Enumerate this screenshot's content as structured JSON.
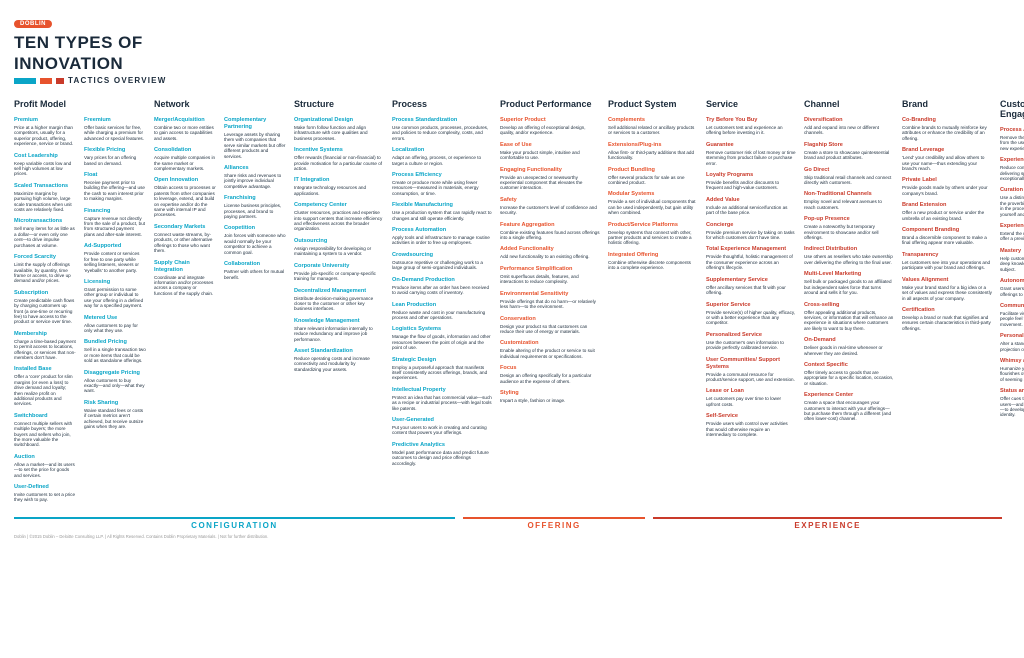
{
  "brand": "DOBLIN",
  "title_l1": "TEN TYPES OF",
  "title_l2": "INNOVATION",
  "subtitle": "TACTICS OVERVIEW",
  "groups": [
    {
      "key": "configuration",
      "label": "CONFIGURATION",
      "color": "blue",
      "span_cols": 4
    },
    {
      "key": "offering",
      "label": "OFFERING",
      "color": "orange",
      "span_cols": 2
    },
    {
      "key": "experience",
      "label": "EXPERIENCE",
      "color": "red",
      "span_cols": 4
    }
  ],
  "categories": [
    {
      "name": "Profit Model",
      "color": "blue",
      "double": true,
      "items": [
        {
          "t": "Premium",
          "d": "Price at a higher margin than competitors, usually for a superior product, offering, experience, service or brand."
        },
        {
          "t": "Cost Leadership",
          "d": "Keep variable costs low and sell high volumes at low prices."
        },
        {
          "t": "Scaled Transactions",
          "d": "Maximize margins by pursuing high volume, large scale transactions when unit costs are relatively fixed."
        },
        {
          "t": "Microtransactions",
          "d": "Sell many items for as little as a dollar—or even only one cent—to drive impulse purchases at volume."
        },
        {
          "t": "Forced Scarcity",
          "d": "Limit the supply of offerings available, by quantity, time frame or access, to drive up demand and/or prices."
        },
        {
          "t": "Subscription",
          "d": "Create predictable cash flows by charging customers up front (a one-time or recurring fee) to have access to the product or service over time."
        },
        {
          "t": "Membership",
          "d": "Charge a time-based payment to permit access to locations, offerings, or services that non-members don't have."
        },
        {
          "t": "Installed Base",
          "d": "Offer a 'core' product for slim margins (or even a loss) to drive demand and loyalty; then realize profit on additional products and services."
        },
        {
          "t": "Switchboard",
          "d": "Connect multiple sellers with multiple buyers; the more buyers and sellers who join, the more valuable the switchboard."
        },
        {
          "t": "Auction",
          "d": "Allow a market—and its users—to set the price for goods and services."
        },
        {
          "t": "User-Defined",
          "d": "Invite customers to set a price they wish to pay."
        },
        {
          "t": "Freemium",
          "d": "Offer basic services for free, while charging a premium for advanced or special features."
        },
        {
          "t": "Flexible Pricing",
          "d": "Vary prices for an offering based on demand."
        },
        {
          "t": "Float",
          "d": "Receive payment prior to building the offering—and use the cash to earn interest prior to making margins."
        },
        {
          "t": "Financing",
          "d": "Capture revenue not directly from the sale of a product, but from structured payment plans and after-sale interest."
        },
        {
          "t": "Ad-Supported",
          "d": "Provide content or services for free to one party while selling listeners, viewers or 'eyeballs' to another party."
        },
        {
          "t": "Licensing",
          "d": "Grant permission to some other group or individual to use your offering in a defined way for a specified payment."
        },
        {
          "t": "Metered Use",
          "d": "Allow customers to pay for only what they use."
        },
        {
          "t": "Bundled Pricing",
          "d": "Sell in a single transaction two or more items that could be sold as standalone offerings."
        },
        {
          "t": "Disaggregate Pricing",
          "d": "Allow customers to buy exactly—and only—what they want."
        },
        {
          "t": "Risk Sharing",
          "d": "Waive standard fees or costs if certain metrics aren't achieved, but receive outsize gains when they are."
        }
      ]
    },
    {
      "name": "Network",
      "color": "blue",
      "double": true,
      "items": [
        {
          "t": "Merger/Acquisition",
          "d": "Combine two or more entities to gain access to capabilities and assets."
        },
        {
          "t": "Consolidation",
          "d": "Acquire multiple companies in the same market or complementary markets."
        },
        {
          "t": "Open Innovation",
          "d": "Obtain access to processes or patents from other companies to leverage, extend, and build on expertise and/or do the same with internal IP and processes."
        },
        {
          "t": "Secondary Markets",
          "d": "Connect waste streams, by-products, or other alternative offerings to those who want them."
        },
        {
          "t": "Supply Chain Integration",
          "d": "Coordinate and integrate information and/or processes across a company or functions of the supply chain."
        },
        {
          "t": "Complementary Partnering",
          "d": "Leverage assets by sharing them with companies that serve similar markets but offer different products and services."
        },
        {
          "t": "Alliances",
          "d": "Share risks and revenues to jointly improve individual competitive advantage."
        },
        {
          "t": "Franchising",
          "d": "License business principles, processes, and brand to paying partners."
        },
        {
          "t": "Coopetition",
          "d": "Join forces with someone who would normally be your competitor to achieve a common goal."
        },
        {
          "t": "Collaboration",
          "d": "Partner with others for mutual benefit."
        }
      ]
    },
    {
      "name": "Structure",
      "color": "blue",
      "items": [
        {
          "t": "Organizational Design",
          "d": "Make form follow function and align infrastructure with core qualities and business processes."
        },
        {
          "t": "Incentive Systems",
          "d": "Offer rewards (financial or non-financial) to provide motivation for a particular course of action."
        },
        {
          "t": "IT Integration",
          "d": "Integrate technology resources and applications."
        },
        {
          "t": "Competency Center",
          "d": "Cluster resources, practices and expertise into support centers that increase efficiency and effectiveness across the broader organization."
        },
        {
          "t": "Outsourcing",
          "d": "Assign responsibility for developing or maintaining a system to a vendor."
        },
        {
          "t": "Corporate University",
          "d": "Provide job-specific or company-specific training for managers."
        },
        {
          "t": "Decentralized Management",
          "d": "Distribute decision-making governance closer to the customer or other key business interfaces."
        },
        {
          "t": "Knowledge Management",
          "d": "Share relevant information internally to reduce redundancy and improve job performance."
        },
        {
          "t": "Asset Standardization",
          "d": "Reduce operating costs and increase connectivity and modularity by standardizing your assets."
        }
      ]
    },
    {
      "name": "Process",
      "color": "blue",
      "items": [
        {
          "t": "Process Standardization",
          "d": "Use common products, processes, procedures, and policies to reduce complexity, costs, and errors."
        },
        {
          "t": "Localization",
          "d": "Adapt an offering, process, or experience to target a culture or region."
        },
        {
          "t": "Process Efficiency",
          "d": "Create or produce more while using fewer resources—measured in materials, energy consumption, or time."
        },
        {
          "t": "Flexible Manufacturing",
          "d": "Use a production system that can rapidly react to changes and still operate efficiently."
        },
        {
          "t": "Process Automation",
          "d": "Apply tools and infrastructure to manage routine activities in order to free up employees."
        },
        {
          "t": "Crowdsourcing",
          "d": "Outsource repetitive or challenging work to a large group of semi-organized individuals."
        },
        {
          "t": "On-Demand Production",
          "d": "Produce items after an order has been received to avoid carrying costs of inventory."
        },
        {
          "t": "Lean Production",
          "d": "Reduce waste and cost in your manufacturing process and other operations."
        },
        {
          "t": "Logistics Systems",
          "d": "Manage the flow of goods, information and other resources between the point of origin and the point of use."
        },
        {
          "t": "Strategic Design",
          "d": "Employ a purposeful approach that manifests itself consistently across offerings, brands, and experiences."
        },
        {
          "t": "Intellectual Property",
          "d": "Protect an idea that has commercial value—such as a recipe or industrial process—with legal tools like patents."
        },
        {
          "t": "User-Generated",
          "d": "Put your users to work in creating and curating content that powers your offerings."
        },
        {
          "t": "Predictive Analytics",
          "d": "Model past performance data and predict future outcomes to design and price offerings accordingly."
        }
      ]
    },
    {
      "name": "Product Performance",
      "color": "orange",
      "items": [
        {
          "t": "Superior Product",
          "d": "Develop an offering of exceptional design, quality, and/or experience."
        },
        {
          "t": "Ease of Use",
          "d": "Make your product simple, intuitive and comfortable to use."
        },
        {
          "t": "Engaging Functionality",
          "d": "Provide an unexpected or newsworthy experiential component that elevates the customer interaction."
        },
        {
          "t": "Safety",
          "d": "Increase the customer's level of confidence and security."
        },
        {
          "t": "Feature Aggregation",
          "d": "Combine existing features found across offerings into a single offering."
        },
        {
          "t": "Added Functionality",
          "d": "Add new functionality to an existing offering."
        },
        {
          "t": "Performance Simplification",
          "d": "Omit superfluous details, features, and interactions to reduce complexity."
        },
        {
          "t": "Environmental Sensitivity",
          "d": "Provide offerings that do no harm—or relatively less harm—to the environment."
        },
        {
          "t": "Conservation",
          "d": "Design your product so that customers can reduce their use of energy or materials."
        },
        {
          "t": "Customization",
          "d": "Enable altering of the product or service to suit individual requirements or specifications."
        },
        {
          "t": "Focus",
          "d": "Design an offering specifically for a particular audience at the expense of others."
        },
        {
          "t": "Styling",
          "d": "Impart a style, fashion or image."
        }
      ]
    },
    {
      "name": "Product System",
      "color": "orange",
      "items": [
        {
          "t": "Complements",
          "d": "Sell additional related or ancillary products or services to a customer."
        },
        {
          "t": "Extensions/Plug-ins",
          "d": "Allow first- or third-party additions that add functionality."
        },
        {
          "t": "Product Bundling",
          "d": "Offer several products for sale as one combined product."
        },
        {
          "t": "Modular Systems",
          "d": "Provide a set of individual components that can be used independently, but gain utility when combined."
        },
        {
          "t": "Product/Service Platforms",
          "d": "Develop systems that connect with other, partner products and services to create a holistic offering."
        },
        {
          "t": "Integrated Offering",
          "d": "Combine otherwise discrete components into a complete experience."
        }
      ]
    },
    {
      "name": "Service",
      "color": "red",
      "items": [
        {
          "t": "Try Before You Buy",
          "d": "Let customers test and experience an offering before investing in it."
        },
        {
          "t": "Guarantee",
          "d": "Remove customer risk of lost money or time stemming from product failure or purchase error."
        },
        {
          "t": "Loyalty Programs",
          "d": "Provide benefits and/or discounts to frequent and high-value customers."
        },
        {
          "t": "Added Value",
          "d": "Include an additional service/function as part of the base price."
        },
        {
          "t": "Concierge",
          "d": "Provide premium service by taking on tasks for which customers don't have time."
        },
        {
          "t": "Total Experience Management",
          "d": "Provide thoughtful, holistic management of the consumer experience across an offering's lifecycle."
        },
        {
          "t": "Supplementary Service",
          "d": "Offer ancillary services that fit with your offering."
        },
        {
          "t": "Superior Service",
          "d": "Provide service(s) of higher quality, efficacy, or with a better experience than any competitor."
        },
        {
          "t": "Personalized Service",
          "d": "Use the customer's own information to provide perfectly calibrated service."
        },
        {
          "t": "User Communities/ Support Systems",
          "d": "Provide a communal resource for product/service support, use and extension."
        },
        {
          "t": "Lease or Loan",
          "d": "Let customers pay over time to lower upfront costs."
        },
        {
          "t": "Self-Service",
          "d": "Provide users with control over activities that would otherwise require an intermediary to complete."
        }
      ]
    },
    {
      "name": "Channel",
      "color": "red",
      "items": [
        {
          "t": "Diversification",
          "d": "Add and expand into new or different channels."
        },
        {
          "t": "Flagship Store",
          "d": "Create a store to showcase quintessential brand and product attributes."
        },
        {
          "t": "Go Direct",
          "d": "Skip traditional retail channels and connect directly with customers."
        },
        {
          "t": "Non-Traditional Channels",
          "d": "Employ novel and relevant avenues to reach customers."
        },
        {
          "t": "Pop-up Presence",
          "d": "Create a noteworthy but temporary environment to showcase and/or sell offerings."
        },
        {
          "t": "Indirect Distribution",
          "d": "Use others as resellers who take ownership over delivering the offering to the final user."
        },
        {
          "t": "Multi-Level Marketing",
          "d": "Sell bulk or packaged goods to an affiliated but independent sales force that turns around and sells it for you."
        },
        {
          "t": "Cross-selling",
          "d": "Offer appealing additional products, services, or information that will enhance an experience in situations where customers are likely to want to buy them."
        },
        {
          "t": "On-Demand",
          "d": "Deliver goods in real-time whenever or wherever they are desired."
        },
        {
          "t": "Context Specific",
          "d": "Offer timely access to goods that are appropriate for a specific location, occasion, or situation."
        },
        {
          "t": "Experience Center",
          "d": "Create a space that encourages your customers to interact with your offerings—but purchase them through a different (and often lower-cost) channel."
        }
      ]
    },
    {
      "name": "Brand",
      "color": "red",
      "items": [
        {
          "t": "Co-Branding",
          "d": "Combine brands to mutually reinforce key attributes or enhance the credibility of an offering."
        },
        {
          "t": "Brand Leverage",
          "d": "'Lend' your credibility and allow others to use your name—thus extending your brand's reach."
        },
        {
          "t": "Private Label",
          "d": "Provide goods made by others under your company's brand."
        },
        {
          "t": "Brand Extension",
          "d": "Offer a new product or service under the umbrella of an existing brand."
        },
        {
          "t": "Component Branding",
          "d": "Brand a discernible component to make a final offering appear more valuable."
        },
        {
          "t": "Transparency",
          "d": "Let customers see into your operations and participate with your brand and offerings."
        },
        {
          "t": "Values Alignment",
          "d": "Make your brand stand for a big idea or a set of values and express these consistently in all aspects of your company."
        },
        {
          "t": "Certification",
          "d": "Develop a brand or mark that signifies and ensures certain characteristics in third-party offerings."
        }
      ]
    },
    {
      "name": "Customer Engagement",
      "color": "red",
      "items": [
        {
          "t": "Process Automation",
          "d": "Remove the burden of repetitive tasks from the user to simplify life and make new experiences seem magical."
        },
        {
          "t": "Experience Simplification",
          "d": "Reduce complexity and focus on delivering specific experiences exceptionally well."
        },
        {
          "t": "Curation",
          "d": "Use a distinct point of view to separate the proverbial wheat from the chaff—and in the process create a strong identity for yourself and your followers."
        },
        {
          "t": "Experience Enabling",
          "d": "Extend the realm of what's possible to offer a previously improbable experience."
        },
        {
          "t": "Mastery",
          "d": "Help customers to obtain great skill or deep knowledge of some activity or subject."
        },
        {
          "t": "Autonomy and Authority",
          "d": "Grant users the power to use your offerings to shape their own experience."
        },
        {
          "t": "Community and Belonging",
          "d": "Facilitate visceral connections to make people feel they are part of a group or movement."
        },
        {
          "t": "Personalization",
          "d": "Alter a standard offering to allow the projection of the customer's identity."
        },
        {
          "t": "Whimsy and Personality",
          "d": "Humanize your offering with small flourishes of on-brand, on-message ways of seeming alive."
        },
        {
          "t": "Status and Recognition",
          "d": "Offer cues that confer meaning, allowing users—and those who interact with them—to develop and nurture aspects of their identity."
        }
      ]
    }
  ],
  "footer": "Doblin | ©2015 Doblin – Deloitte Consulting LLP. | All Rights Reserved. Contains Doblin Proprietary Materials. | Not for further distribution."
}
